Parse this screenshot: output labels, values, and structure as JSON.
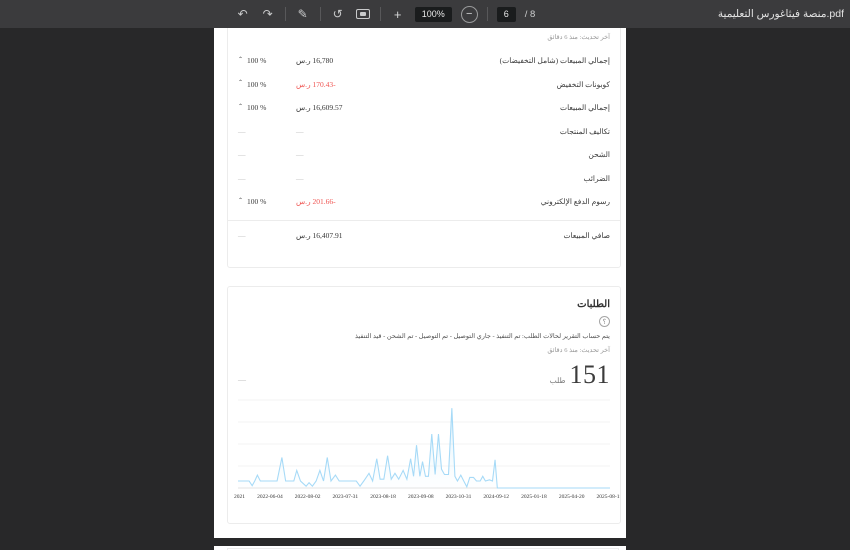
{
  "viewer": {
    "doc_title": "منصة فيثاغورس التعليمية.pdf",
    "toolbar": {
      "zoom_level": "100%",
      "plus_label": "+",
      "minus_label": "−",
      "current_page": "6",
      "page_count_label": "/ 8",
      "icons": {
        "undo": "↶",
        "redo": "↷",
        "annotate": "✎",
        "rotate": "↺",
        "help_glyph": "؟"
      }
    },
    "colors": {
      "toolbar_bg": "#3b3b3d",
      "viewer_bg": "#282829",
      "accent_red": "#ef5350",
      "chart_line": "#a6daf7"
    }
  },
  "summary_card": {
    "last_updated": "آخر تحديث: منذ 6 دقائق",
    "caret_glyph": "⌃",
    "rows": [
      {
        "label": "إجمالي المبيعات (شامل التخفيضات)",
        "value": "16,780 ر.س",
        "style": "dark",
        "percent": "100 %",
        "caret": true
      },
      {
        "label": "كوبونات التخفيض",
        "value": "-170.43 ر.س",
        "style": "red",
        "percent": "100 %",
        "caret": true
      },
      {
        "label": "إجمالي المبيعات",
        "value": "16,609.57 ر.س",
        "style": "dark",
        "percent": "100 %",
        "caret": true
      },
      {
        "label": "تكاليف المنتجات",
        "value": "—",
        "style": "dash",
        "percent": "—",
        "caret": false
      },
      {
        "label": "الشحن",
        "value": "—",
        "style": "dash",
        "percent": "—",
        "caret": false
      },
      {
        "label": "الضرائب",
        "value": "—",
        "style": "dash",
        "percent": "—",
        "caret": false
      },
      {
        "label": "رسوم الدفع الإلكتروني",
        "value": "-201.66 ر.س",
        "style": "red",
        "percent": "100 %",
        "caret": true
      }
    ],
    "total_row": {
      "label": "صافي المبيعات",
      "value": "16,407.91 ر.س",
      "style": "dark",
      "percent": "—",
      "caret": false
    }
  },
  "orders_card": {
    "title": "الطلبات",
    "help_glyph": "؟",
    "description": "يتم حساب التقرير لحالات الطلب: تم التنفيذ - جاري التوصيل - تم التوصيل - تم الشحن - قيد التنفيذ",
    "last_updated": "آخر تحديث: منذ 6 دقائق",
    "stat_value": "151",
    "stat_unit": "طلب",
    "comparison": "—"
  },
  "chart_data": {
    "type": "area",
    "title": "الطلبات",
    "xlabel": "",
    "ylabel": "",
    "ylim": [
      0,
      15
    ],
    "grid": true,
    "legend": false,
    "line_color": "#a6daf7",
    "fill_top": "rgba(167,218,247,0.42)",
    "fill_bottom": "rgba(222,242,252,0.05)",
    "x_tick_labels": [
      "2025-08-11",
      "2025-04-20",
      "2025-01-18",
      "2024-09-12",
      "2023-10-31",
      "2023-09-08",
      "2023-08-18",
      "2023-07-31",
      "2022-08-02",
      "2022-06-04",
      "2021"
    ],
    "note": "x axis runs newest (left) to oldest (right); points are [x_fraction, orders]",
    "points": [
      [
        0.0,
        1.2
      ],
      [
        0.03,
        1.2
      ],
      [
        0.038,
        0.4
      ],
      [
        0.045,
        1.2
      ],
      [
        0.052,
        2.2
      ],
      [
        0.06,
        1.2
      ],
      [
        0.105,
        1.2
      ],
      [
        0.118,
        5.2
      ],
      [
        0.128,
        1.2
      ],
      [
        0.15,
        1.2
      ],
      [
        0.158,
        3.0
      ],
      [
        0.168,
        1.2
      ],
      [
        0.183,
        0.3
      ],
      [
        0.191,
        0.9
      ],
      [
        0.2,
        0.3
      ],
      [
        0.21,
        1.2
      ],
      [
        0.22,
        3.0
      ],
      [
        0.23,
        1.2
      ],
      [
        0.24,
        5.2
      ],
      [
        0.25,
        1.2
      ],
      [
        0.262,
        2.2
      ],
      [
        0.272,
        1.2
      ],
      [
        0.318,
        1.2
      ],
      [
        0.328,
        0.3
      ],
      [
        0.338,
        1.2
      ],
      [
        0.352,
        2.5
      ],
      [
        0.362,
        1.2
      ],
      [
        0.373,
        5.0
      ],
      [
        0.382,
        1.5
      ],
      [
        0.392,
        1.5
      ],
      [
        0.402,
        5.5
      ],
      [
        0.412,
        1.5
      ],
      [
        0.422,
        2.5
      ],
      [
        0.432,
        1.5
      ],
      [
        0.444,
        3.0
      ],
      [
        0.454,
        1.5
      ],
      [
        0.464,
        5.0
      ],
      [
        0.472,
        2.0
      ],
      [
        0.48,
        7.3
      ],
      [
        0.489,
        2.0
      ],
      [
        0.496,
        4.5
      ],
      [
        0.504,
        2.0
      ],
      [
        0.512,
        2.0
      ],
      [
        0.521,
        9.2
      ],
      [
        0.53,
        2.3
      ],
      [
        0.539,
        9.2
      ],
      [
        0.547,
        3.2
      ],
      [
        0.555,
        2.3
      ],
      [
        0.566,
        2.3
      ],
      [
        0.575,
        13.6
      ],
      [
        0.583,
        2.0
      ],
      [
        0.59,
        1.2
      ],
      [
        0.599,
        2.2
      ],
      [
        0.607,
        1.2
      ],
      [
        0.615,
        0.2
      ],
      [
        0.623,
        1.8
      ],
      [
        0.633,
        1.8
      ],
      [
        0.641,
        1.2
      ],
      [
        0.651,
        1.2
      ],
      [
        0.658,
        2.0
      ],
      [
        0.665,
        1.2
      ],
      [
        0.676,
        1.4
      ],
      [
        0.684,
        1.2
      ],
      [
        0.691,
        4.8
      ],
      [
        0.697,
        0.0
      ],
      [
        1.0,
        0.0
      ]
    ]
  }
}
